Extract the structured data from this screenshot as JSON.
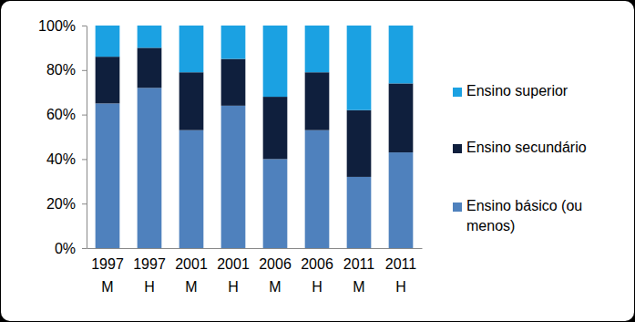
{
  "chart_data": {
    "type": "bar",
    "stacked": true,
    "grid": false,
    "legend": "right",
    "categories": [
      "1997 M",
      "1997 H",
      "2001 M",
      "2001 H",
      "2006 M",
      "2006 H",
      "2011 M",
      "2011 H"
    ],
    "series": [
      {
        "name": "Ensino básico (ou menos)",
        "color": "#4f81bd",
        "values": [
          65,
          72,
          53,
          64,
          40,
          53,
          32,
          43
        ]
      },
      {
        "name": "Ensino secundário",
        "color": "#0f1f3d",
        "values": [
          21,
          18,
          26,
          21,
          28,
          26,
          30,
          31
        ]
      },
      {
        "name": "Ensino superior",
        "color": "#1ba1e2",
        "values": [
          14,
          10,
          21,
          15,
          32,
          21,
          38,
          26
        ]
      }
    ],
    "ylim": [
      0,
      100
    ],
    "yticks": [
      {
        "value": 0,
        "label": "0%"
      },
      {
        "value": 20,
        "label": "20%"
      },
      {
        "value": 40,
        "label": "40%"
      },
      {
        "value": 60,
        "label": "60%"
      },
      {
        "value": 80,
        "label": "80%"
      },
      {
        "value": 100,
        "label": "100%"
      }
    ]
  }
}
